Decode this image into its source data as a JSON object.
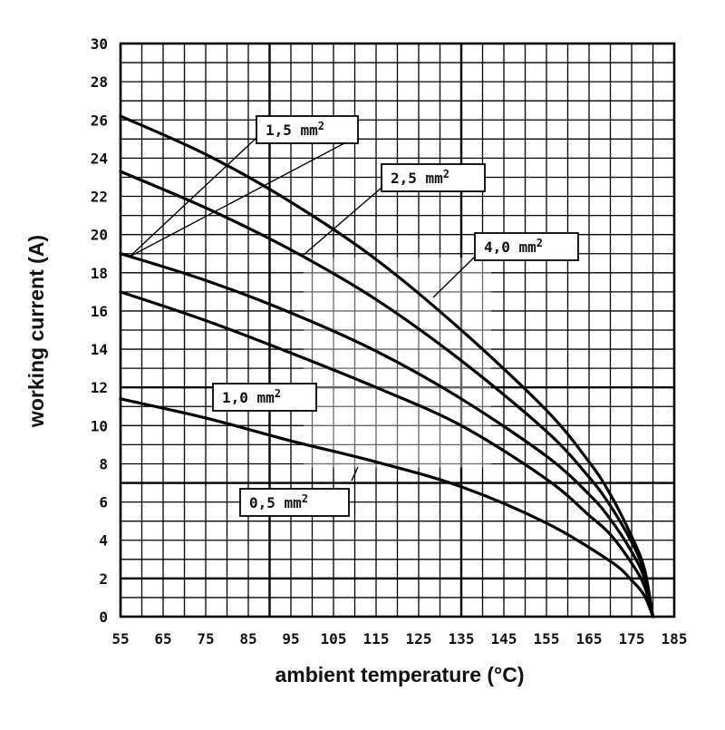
{
  "chart_data": {
    "type": "line",
    "xlabel": "ambient temperature (°C)",
    "ylabel": "working current (A)",
    "xlim": [
      55,
      185
    ],
    "ylim": [
      0,
      30
    ],
    "x_ticks": [
      "55",
      "65",
      "75",
      "85",
      "95",
      "105",
      "115",
      "125",
      "135",
      "145",
      "155",
      "165",
      "175",
      "185"
    ],
    "y_ticks": [
      "0",
      "2",
      "4",
      "6",
      "8",
      "10",
      "12",
      "14",
      "16",
      "18",
      "20",
      "22",
      "24",
      "26",
      "28",
      "30"
    ],
    "grid": true,
    "series": [
      {
        "name": "0,5 mm²",
        "label_main": "0,5 mm",
        "label_sup": "2",
        "x": [
          55,
          75,
          95,
          115,
          135,
          155,
          170,
          175,
          178,
          180
        ],
        "y": [
          11.4,
          10.4,
          9.2,
          8.1,
          6.8,
          4.9,
          2.9,
          1.9,
          1.1,
          0
        ]
      },
      {
        "name": "1,0 mm²",
        "label_main": "1,0 mm",
        "label_sup": "2",
        "x": [
          55,
          75,
          95,
          115,
          135,
          155,
          165,
          170,
          175,
          178,
          180
        ],
        "y": [
          17.0,
          15.5,
          13.8,
          12.0,
          10.0,
          7.2,
          5.3,
          4.3,
          2.8,
          1.6,
          0
        ]
      },
      {
        "name": "1,5 mm²",
        "label_main": "1,5 mm",
        "label_sup": "2",
        "x": [
          55,
          75,
          95,
          115,
          135,
          155,
          165,
          170,
          175,
          178,
          180
        ],
        "y": [
          19.0,
          17.6,
          15.9,
          13.9,
          11.4,
          8.4,
          6.4,
          5.1,
          3.4,
          2.0,
          0
        ]
      },
      {
        "name": "2,5 mm²",
        "label_main": "2,5 mm",
        "label_sup": "2",
        "x": [
          55,
          75,
          95,
          115,
          135,
          155,
          165,
          170,
          175,
          178,
          180
        ],
        "y": [
          23.3,
          21.4,
          19.2,
          16.6,
          13.4,
          9.7,
          7.3,
          5.8,
          3.9,
          2.3,
          0
        ]
      },
      {
        "name": "4,0 mm²",
        "label_main": "4,0 mm",
        "label_sup": "2",
        "x": [
          55,
          75,
          95,
          115,
          135,
          155,
          165,
          170,
          175,
          178,
          180
        ],
        "y": [
          26.2,
          24.2,
          21.7,
          18.7,
          15.0,
          10.8,
          8.1,
          6.4,
          4.2,
          2.5,
          0
        ]
      }
    ]
  }
}
